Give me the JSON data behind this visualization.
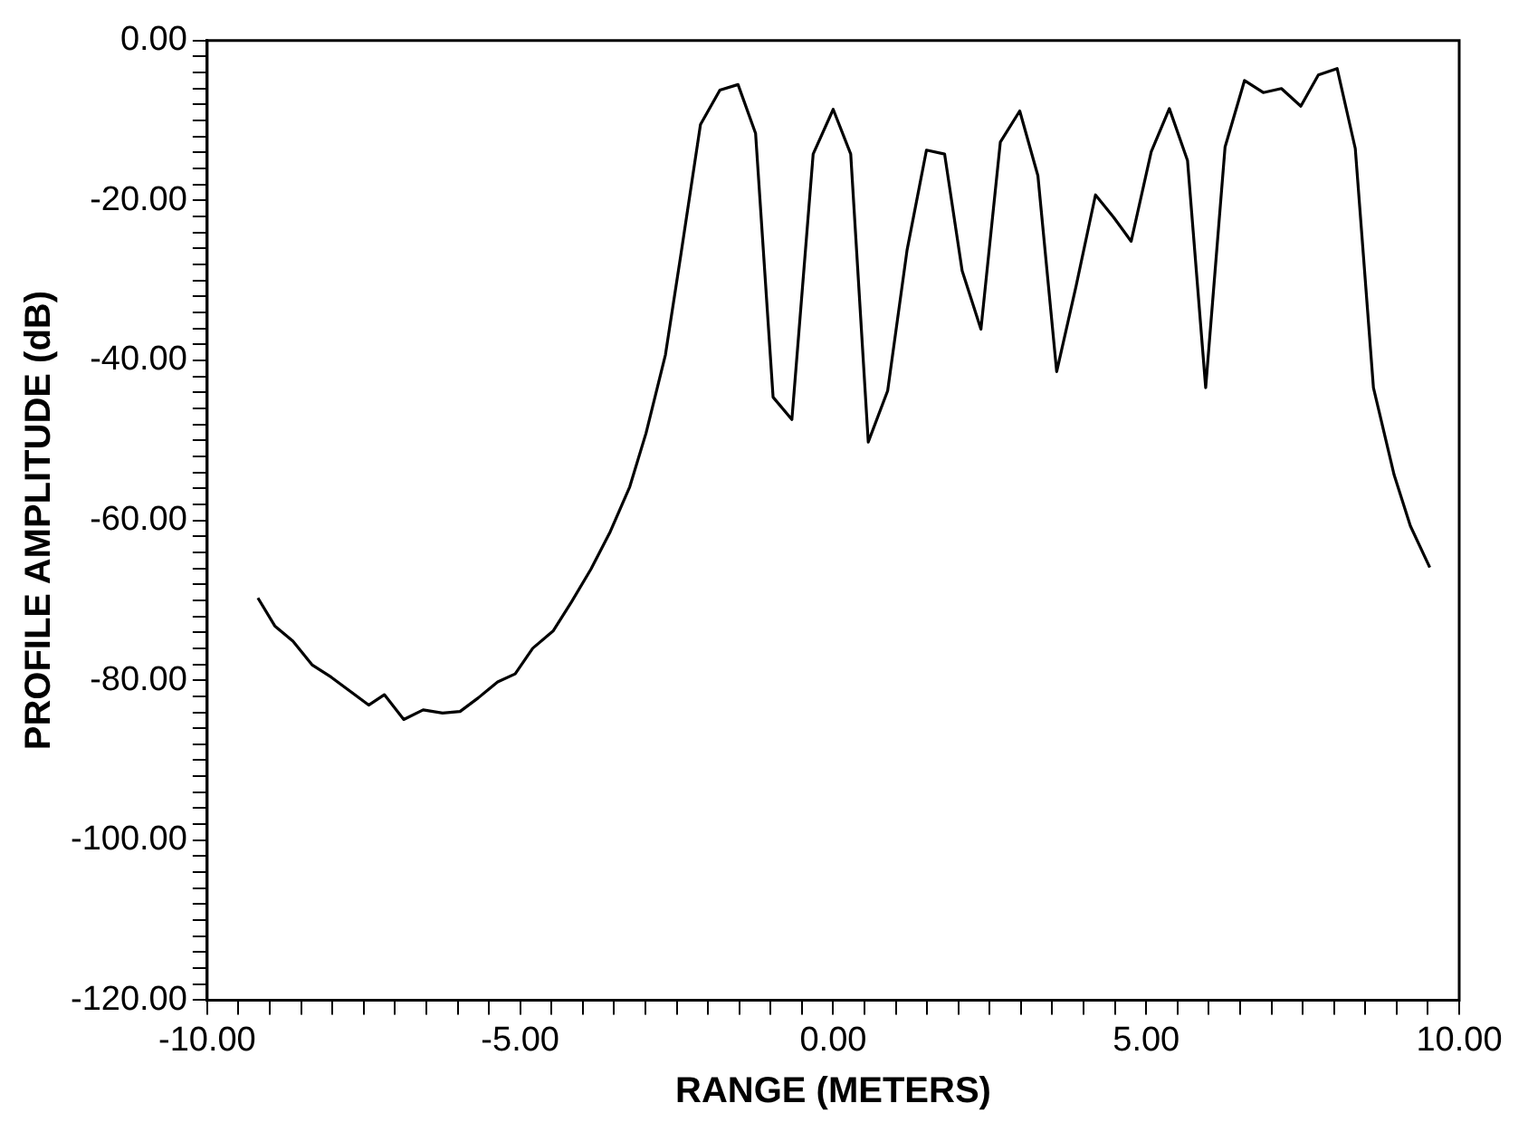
{
  "chart_data": {
    "type": "line",
    "xlabel": "RANGE (METERS)",
    "ylabel": "PROFILE AMPLITUDE (dB)",
    "xlim": [
      -10,
      10
    ],
    "ylim": [
      -120,
      0
    ],
    "xticks": [
      {
        "value": -10,
        "label": "-10.00"
      },
      {
        "value": -9.5,
        "label": null
      },
      {
        "value": -9,
        "label": null
      },
      {
        "value": -8.5,
        "label": null
      },
      {
        "value": -8,
        "label": null
      },
      {
        "value": -7.5,
        "label": null
      },
      {
        "value": -7,
        "label": null
      },
      {
        "value": -6.5,
        "label": null
      },
      {
        "value": -6,
        "label": null
      },
      {
        "value": -5.5,
        "label": null
      },
      {
        "value": -5,
        "label": "-5.00"
      },
      {
        "value": -4.5,
        "label": null
      },
      {
        "value": -4,
        "label": null
      },
      {
        "value": -3.5,
        "label": null
      },
      {
        "value": -3,
        "label": null
      },
      {
        "value": -2.5,
        "label": null
      },
      {
        "value": -2,
        "label": null
      },
      {
        "value": -1.5,
        "label": null
      },
      {
        "value": -1,
        "label": null
      },
      {
        "value": -0.5,
        "label": null
      },
      {
        "value": 0,
        "label": "0.00"
      },
      {
        "value": 0.5,
        "label": null
      },
      {
        "value": 1,
        "label": null
      },
      {
        "value": 1.5,
        "label": null
      },
      {
        "value": 2,
        "label": null
      },
      {
        "value": 2.5,
        "label": null
      },
      {
        "value": 3,
        "label": null
      },
      {
        "value": 3.5,
        "label": null
      },
      {
        "value": 4,
        "label": null
      },
      {
        "value": 4.5,
        "label": null
      },
      {
        "value": 5,
        "label": "5.00"
      },
      {
        "value": 5.5,
        "label": null
      },
      {
        "value": 6,
        "label": null
      },
      {
        "value": 6.5,
        "label": null
      },
      {
        "value": 7,
        "label": null
      },
      {
        "value": 7.5,
        "label": null
      },
      {
        "value": 8,
        "label": null
      },
      {
        "value": 8.5,
        "label": null
      },
      {
        "value": 9,
        "label": null
      },
      {
        "value": 9.5,
        "label": null
      },
      {
        "value": 10,
        "label": "10.00"
      }
    ],
    "yticks": [
      {
        "value": -120,
        "label": "-120.00"
      },
      {
        "value": -118,
        "label": null
      },
      {
        "value": -116,
        "label": null
      },
      {
        "value": -114,
        "label": null
      },
      {
        "value": -112,
        "label": null
      },
      {
        "value": -110,
        "label": null
      },
      {
        "value": -108,
        "label": null
      },
      {
        "value": -106,
        "label": null
      },
      {
        "value": -104,
        "label": null
      },
      {
        "value": -102,
        "label": null
      },
      {
        "value": -100,
        "label": "-100.00"
      },
      {
        "value": -98,
        "label": null
      },
      {
        "value": -96,
        "label": null
      },
      {
        "value": -94,
        "label": null
      },
      {
        "value": -92,
        "label": null
      },
      {
        "value": -90,
        "label": null
      },
      {
        "value": -88,
        "label": null
      },
      {
        "value": -86,
        "label": null
      },
      {
        "value": -84,
        "label": null
      },
      {
        "value": -82,
        "label": null
      },
      {
        "value": -80,
        "label": "-80.00"
      },
      {
        "value": -78,
        "label": null
      },
      {
        "value": -76,
        "label": null
      },
      {
        "value": -74,
        "label": null
      },
      {
        "value": -72,
        "label": null
      },
      {
        "value": -70,
        "label": null
      },
      {
        "value": -68,
        "label": null
      },
      {
        "value": -66,
        "label": null
      },
      {
        "value": -64,
        "label": null
      },
      {
        "value": -62,
        "label": null
      },
      {
        "value": -60,
        "label": "-60.00"
      },
      {
        "value": -58,
        "label": null
      },
      {
        "value": -56,
        "label": null
      },
      {
        "value": -54,
        "label": null
      },
      {
        "value": -52,
        "label": null
      },
      {
        "value": -50,
        "label": null
      },
      {
        "value": -48,
        "label": null
      },
      {
        "value": -46,
        "label": null
      },
      {
        "value": -44,
        "label": null
      },
      {
        "value": -42,
        "label": null
      },
      {
        "value": -40,
        "label": "-40.00"
      },
      {
        "value": -38,
        "label": null
      },
      {
        "value": -36,
        "label": null
      },
      {
        "value": -34,
        "label": null
      },
      {
        "value": -32,
        "label": null
      },
      {
        "value": -30,
        "label": null
      },
      {
        "value": -28,
        "label": null
      },
      {
        "value": -26,
        "label": null
      },
      {
        "value": -24,
        "label": null
      },
      {
        "value": -22,
        "label": null
      },
      {
        "value": -20,
        "label": "-20.00"
      },
      {
        "value": -18,
        "label": null
      },
      {
        "value": -16,
        "label": null
      },
      {
        "value": -14,
        "label": null
      },
      {
        "value": -12,
        "label": null
      },
      {
        "value": -10,
        "label": null
      },
      {
        "value": -8,
        "label": null
      },
      {
        "value": -6,
        "label": null
      },
      {
        "value": -4,
        "label": null
      },
      {
        "value": -2,
        "label": null
      },
      {
        "value": 0,
        "label": "0.00"
      }
    ],
    "grid": false,
    "marker": "none",
    "line_style": "solid",
    "series": [
      {
        "color": "#000000",
        "x": [
          -9.19,
          -8.92,
          -8.63,
          -8.32,
          -8.02,
          -7.42,
          -7.17,
          -6.86,
          -6.55,
          -6.24,
          -5.96,
          -5.67,
          -5.36,
          -5.08,
          -4.8,
          -4.47,
          -4.18,
          -3.87,
          -3.56,
          -3.25,
          -2.99,
          -2.68,
          -2.43,
          -2.12,
          -1.81,
          -1.52,
          -1.24,
          -0.96,
          -0.66,
          -0.32,
          0.0,
          0.28,
          0.56,
          0.87,
          1.18,
          1.49,
          1.78,
          2.06,
          2.36,
          2.67,
          2.98,
          3.27,
          3.57,
          3.88,
          4.19,
          4.48,
          4.76,
          5.08,
          5.37,
          5.66,
          5.95,
          6.26,
          6.57,
          6.87,
          7.16,
          7.47,
          7.75,
          8.05,
          8.34,
          8.63,
          8.96,
          9.22,
          9.53
        ],
        "values": [
          -69.7,
          -73.2,
          -75.1,
          -78.1,
          -79.6,
          -83.1,
          -81.8,
          -84.9,
          -83.7,
          -84.1,
          -83.9,
          -82.2,
          -80.2,
          -79.2,
          -76.0,
          -73.8,
          -70.2,
          -66.1,
          -61.4,
          -55.8,
          -49.1,
          -39.3,
          -26.6,
          -10.5,
          -6.2,
          -5.5,
          -11.6,
          -44.6,
          -47.4,
          -14.2,
          -8.6,
          -14.2,
          -50.2,
          -43.8,
          -26.2,
          -13.7,
          -14.2,
          -28.8,
          -36.1,
          -12.7,
          -8.8,
          -16.9,
          -41.4,
          -30.7,
          -19.3,
          -22.1,
          -25.1,
          -13.9,
          -8.5,
          -15.0,
          -43.4,
          -13.3,
          -5.0,
          -6.5,
          -6.0,
          -8.2,
          -4.3,
          -3.5,
          -13.5,
          -43.4,
          -54.3,
          -60.7,
          -65.9
        ]
      }
    ]
  }
}
